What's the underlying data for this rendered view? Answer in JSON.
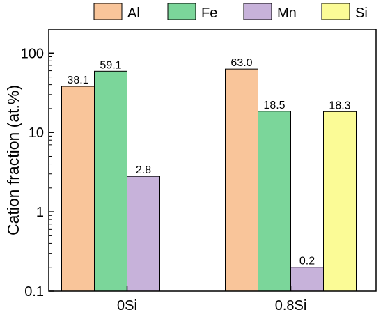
{
  "chart_data": {
    "type": "bar",
    "scale": "log",
    "ylabel": "Cation fraction (at.%)",
    "xlabel": "",
    "ylim": [
      0.1,
      200
    ],
    "yticks": [
      {
        "value": 0.1,
        "label": "0.1"
      },
      {
        "value": 1,
        "label": "1"
      },
      {
        "value": 10,
        "label": "10"
      },
      {
        "value": 100,
        "label": "100"
      }
    ],
    "categories": [
      "0Si",
      "0.8Si"
    ],
    "legend_position": "top",
    "grid": false,
    "series": [
      {
        "name": "Al",
        "color": "#F9C59A",
        "values": [
          38.1,
          63.0
        ],
        "labels": [
          "38.1",
          "63.0"
        ]
      },
      {
        "name": "Fe",
        "color": "#7BD69A",
        "values": [
          59.1,
          18.5
        ],
        "labels": [
          "59.1",
          "18.5"
        ]
      },
      {
        "name": "Mn",
        "color": "#C7B2DA",
        "values": [
          2.8,
          0.2
        ],
        "labels": [
          "2.8",
          "0.2"
        ]
      },
      {
        "name": "Si",
        "color": "#FBFB96",
        "values": [
          null,
          18.3
        ],
        "labels": [
          null,
          "18.3"
        ]
      }
    ]
  }
}
